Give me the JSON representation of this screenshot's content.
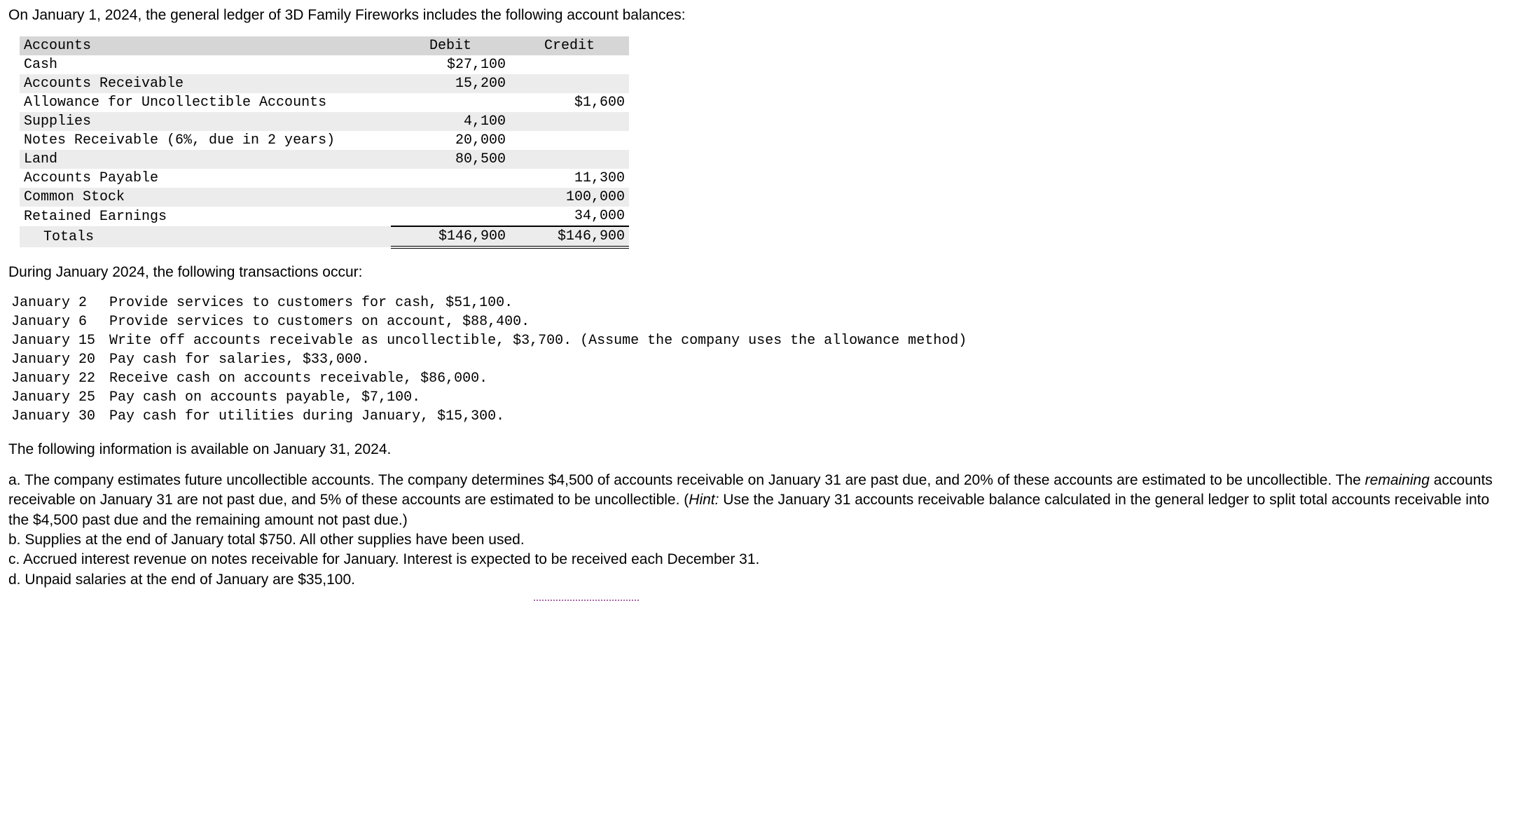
{
  "intro": "On January 1, 2024, the general ledger of 3D Family Fireworks includes the following account balances:",
  "ledger": {
    "headers": {
      "account": "Accounts",
      "debit": "Debit",
      "credit": "Credit"
    },
    "rows": [
      {
        "account": "Cash",
        "debit": "$27,100",
        "credit": ""
      },
      {
        "account": "Accounts Receivable",
        "debit": "15,200",
        "credit": ""
      },
      {
        "account": "Allowance for Uncollectible Accounts",
        "debit": "",
        "credit": "$1,600"
      },
      {
        "account": "Supplies",
        "debit": "4,100",
        "credit": ""
      },
      {
        "account": "Notes Receivable (6%, due in 2 years)",
        "debit": "20,000",
        "credit": ""
      },
      {
        "account": "Land",
        "debit": "80,500",
        "credit": ""
      },
      {
        "account": "Accounts Payable",
        "debit": "",
        "credit": "11,300"
      },
      {
        "account": "Common Stock",
        "debit": "",
        "credit": "100,000"
      },
      {
        "account": "Retained Earnings",
        "debit": "",
        "credit": "34,000"
      }
    ],
    "totals": {
      "label": "Totals",
      "debit": "$146,900",
      "credit": "$146,900"
    }
  },
  "during_text": "During January 2024, the following transactions occur:",
  "transactions": [
    {
      "date": "January 2",
      "desc": "Provide services to customers for cash, $51,100."
    },
    {
      "date": "January 6",
      "desc": "Provide services to customers on account, $88,400."
    },
    {
      "date": "January 15",
      "desc": "Write off accounts receivable as uncollectible, $3,700. (Assume the company uses the allowance method)"
    },
    {
      "date": "January 20",
      "desc": "Pay cash for salaries, $33,000."
    },
    {
      "date": "January 22",
      "desc": "Receive cash on accounts receivable, $86,000."
    },
    {
      "date": "January 25",
      "desc": "Pay cash on accounts payable, $7,100."
    },
    {
      "date": "January 30",
      "desc": "Pay cash for utilities during January, $15,300."
    }
  ],
  "info_intro": "The following information is available on January 31, 2024.",
  "info": {
    "a_pre": "a. The company estimates future uncollectible accounts. The company determines $4,500 of accounts receivable on January 31 are past due, and 20% of these accounts are estimated to be uncollectible. The ",
    "a_italic1": "remaining",
    "a_mid": " accounts receivable on January 31 are not past due, and 5% of these accounts are estimated to be uncollectible. (",
    "a_italic2": "Hint:",
    "a_post": " Use the January 31 accounts receivable balance calculated in the general ledger to split total accounts receivable into the $4,500 past due and the remaining amount not past due.)",
    "b": "b. Supplies at the end of January total $750. All other supplies have been used.",
    "c": "c. Accrued interest revenue on notes receivable for January. Interest is expected to be received each December 31.",
    "d": "d. Unpaid salaries at the end of January are $35,100."
  }
}
